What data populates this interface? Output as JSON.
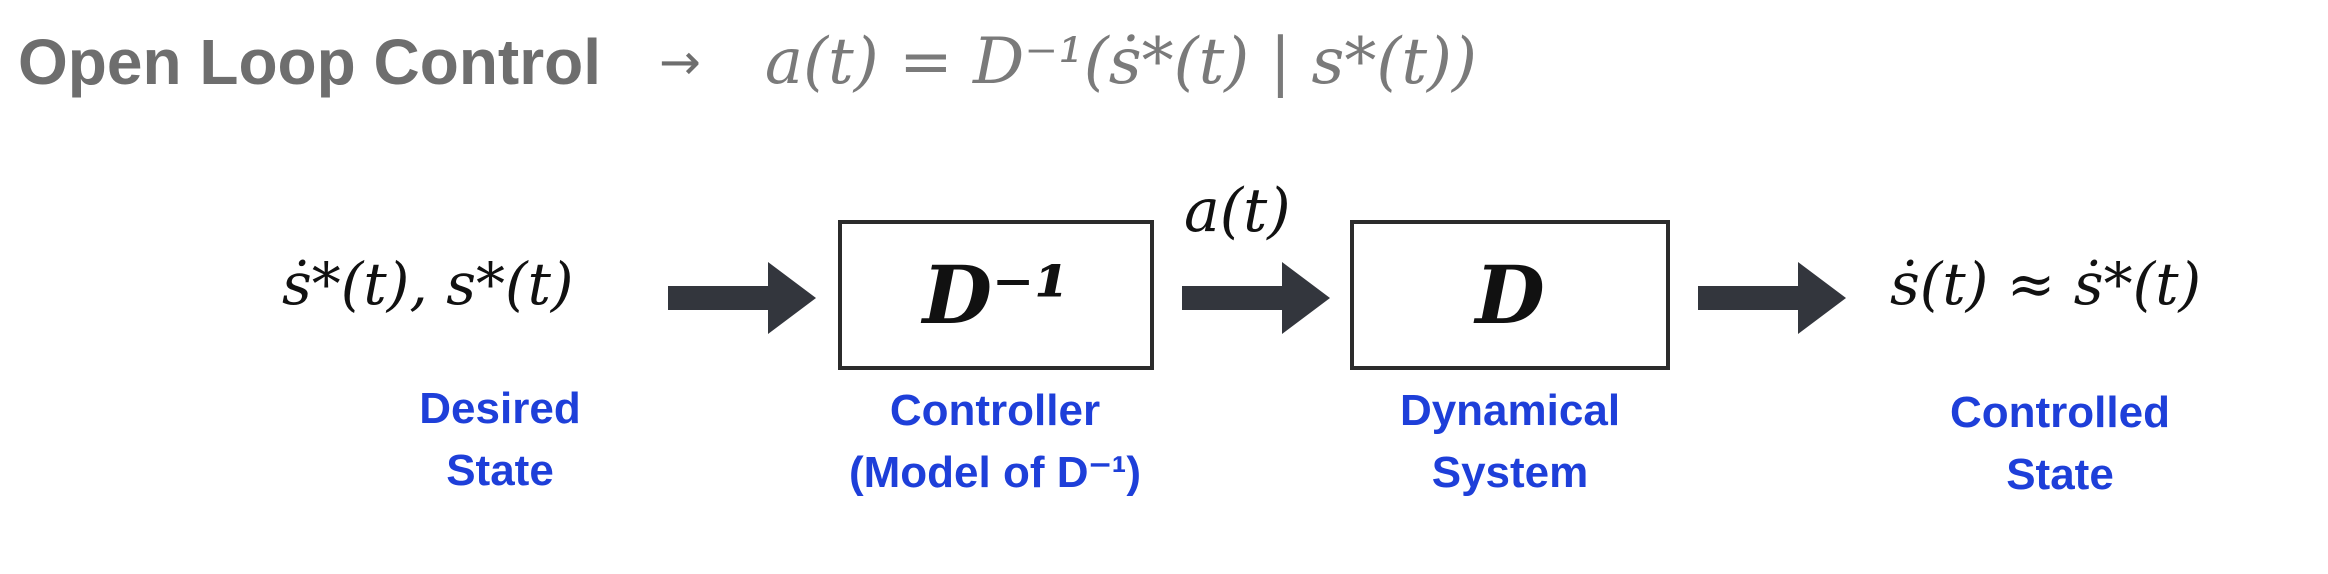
{
  "title": {
    "text": "Open Loop Control",
    "arrow": "→",
    "equation": "a(t) = D⁻¹(ṡ*(t) | s*(t))"
  },
  "input": {
    "label": "ṡ*(t), s*(t)"
  },
  "blocks": {
    "controller": {
      "label": "D⁻¹"
    },
    "system": {
      "label": "D"
    }
  },
  "signal": {
    "label": "a(t)"
  },
  "output": {
    "label": "ṡ(t) ≈ ṡ*(t)"
  },
  "captions": {
    "desired_state": [
      "Desired",
      "State"
    ],
    "controller": [
      "Controller",
      "(Model of D⁻¹)"
    ],
    "system": [
      "Dynamical",
      "System"
    ],
    "controlled_state": [
      "Controlled",
      "State"
    ]
  },
  "colors": {
    "title": "#6e6e6e",
    "caption": "#1e3fd9",
    "arrow": "#33363d",
    "box_border": "#2b2b2b"
  }
}
